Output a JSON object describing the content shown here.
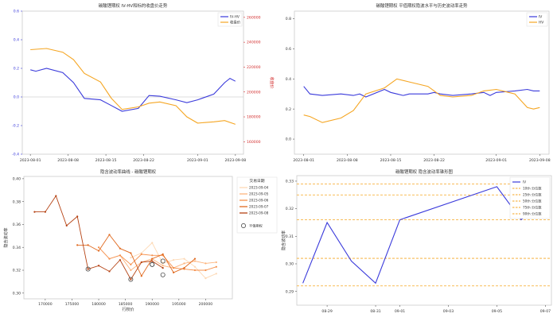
{
  "chart_data": [
    {
      "type": "line",
      "title": "碳酸锂期权 IV-HV和标的收盘价走势",
      "ylabel": "",
      "y2label": "收盘价",
      "ylim": [
        -0.4,
        0.6
      ],
      "yticks": [
        "-0.4",
        "-0.2",
        "0.0",
        "0.2",
        "0.4",
        "0.6"
      ],
      "y2lim": [
        150000,
        265000
      ],
      "y2ticks": [
        "160000",
        "180000",
        "200000",
        "220000",
        "240000",
        "260000"
      ],
      "xlim": [
        "2023-08-01",
        "2023-09-08"
      ],
      "xticks": [
        "2023-08-01",
        "2023-08-08",
        "2023-08-15",
        "2023-08-22",
        "2023-09-01",
        "2023-09-08"
      ],
      "series": [
        {
          "name": "IV-HV",
          "color": "#3a3adb",
          "axis": "left",
          "x": [
            "2023-08-01",
            "2023-08-02",
            "2023-08-04",
            "2023-08-07",
            "2023-08-09",
            "2023-08-11",
            "2023-08-14",
            "2023-08-16",
            "2023-08-18",
            "2023-08-21",
            "2023-08-23",
            "2023-08-25",
            "2023-08-28",
            "2023-08-30",
            "2023-09-01",
            "2023-09-04",
            "2023-09-06",
            "2023-09-07",
            "2023-09-08"
          ],
          "y": [
            0.19,
            0.18,
            0.2,
            0.17,
            0.1,
            -0.01,
            -0.02,
            -0.06,
            -0.1,
            -0.08,
            0.01,
            0.005,
            -0.02,
            -0.04,
            -0.02,
            0.02,
            0.1,
            0.13,
            0.11
          ]
        },
        {
          "name": "收盘价",
          "color": "#f5a623",
          "axis": "right",
          "x": [
            "2023-08-01",
            "2023-08-04",
            "2023-08-07",
            "2023-08-09",
            "2023-08-11",
            "2023-08-14",
            "2023-08-16",
            "2023-08-18",
            "2023-08-21",
            "2023-08-23",
            "2023-08-25",
            "2023-08-28",
            "2023-08-30",
            "2023-09-01",
            "2023-09-04",
            "2023-09-06",
            "2023-09-08"
          ],
          "y": [
            234000,
            235000,
            232000,
            226000,
            215000,
            208000,
            195000,
            186000,
            188000,
            191000,
            192000,
            189000,
            180000,
            175000,
            176000,
            177000,
            174000
          ]
        }
      ],
      "legend": "top-right",
      "grid": false
    },
    {
      "type": "line",
      "title": "碳酸锂期权 平值期权隐波水平与历史波动率走势",
      "ylim": [
        -0.1,
        0.85
      ],
      "yticks": [
        "0.0",
        "0.2",
        "0.4",
        "0.6",
        "0.8"
      ],
      "xlim": [
        "2023-08-01",
        "2023-09-08"
      ],
      "xticks": [
        "2023-08-01",
        "2023-08-08",
        "2023-08-15",
        "2023-08-22",
        "2023-09-01",
        "2023-09-08"
      ],
      "series": [
        {
          "name": "IV",
          "color": "#3a3adb",
          "x": [
            "2023-08-01",
            "2023-08-02",
            "2023-08-04",
            "2023-08-07",
            "2023-08-09",
            "2023-08-10",
            "2023-08-11",
            "2023-08-14",
            "2023-08-15",
            "2023-08-16",
            "2023-08-17",
            "2023-08-18",
            "2023-08-21",
            "2023-08-22",
            "2023-08-23",
            "2023-08-25",
            "2023-08-28",
            "2023-08-30",
            "2023-08-31",
            "2023-09-01",
            "2023-09-04",
            "2023-09-06",
            "2023-09-07",
            "2023-09-08"
          ],
          "y": [
            0.35,
            0.3,
            0.29,
            0.3,
            0.29,
            0.3,
            0.28,
            0.33,
            0.31,
            0.3,
            0.29,
            0.3,
            0.3,
            0.31,
            0.3,
            0.29,
            0.3,
            0.31,
            0.29,
            0.31,
            0.32,
            0.33,
            0.32,
            0.32
          ]
        },
        {
          "name": "HV",
          "color": "#f5a623",
          "x": [
            "2023-08-01",
            "2023-08-02",
            "2023-08-04",
            "2023-08-07",
            "2023-08-09",
            "2023-08-11",
            "2023-08-14",
            "2023-08-16",
            "2023-08-18",
            "2023-08-21",
            "2023-08-23",
            "2023-08-25",
            "2023-08-28",
            "2023-08-30",
            "2023-09-01",
            "2023-09-04",
            "2023-09-06",
            "2023-09-07",
            "2023-09-08"
          ],
          "y": [
            0.16,
            0.15,
            0.11,
            0.14,
            0.19,
            0.3,
            0.34,
            0.4,
            0.38,
            0.35,
            0.29,
            0.28,
            0.29,
            0.32,
            0.33,
            0.3,
            0.21,
            0.2,
            0.21
          ]
        }
      ],
      "legend": "top-right",
      "grid": false
    },
    {
      "type": "line",
      "title": "隐含波动率曲线 - 碳酸锂期权",
      "xlabel": "行权价",
      "ylabel": "隐含波动率",
      "xlim": [
        166000,
        205000
      ],
      "xticks": [
        "170000",
        "175000",
        "180000",
        "185000",
        "190000",
        "195000",
        "200000"
      ],
      "ylim": [
        0.295,
        0.402
      ],
      "yticks": [
        "0.30",
        "0.32",
        "0.34",
        "0.36",
        "0.38",
        "0.40"
      ],
      "legend_title": "交易日期",
      "atm_label": "平值期权",
      "series": [
        {
          "name": "2023-09-04",
          "color": "#fdd9b5",
          "x": [
            186000,
            188000,
            190000,
            192000,
            194000,
            196000,
            198000,
            200000,
            202000
          ],
          "y": [
            0.331,
            0.335,
            0.344,
            0.326,
            0.329,
            0.33,
            0.323,
            0.313,
            0.317
          ],
          "atm": [
            190000,
            0.325
          ]
        },
        {
          "name": "2023-09-05",
          "color": "#fdb57e",
          "x": [
            184000,
            186000,
            188000,
            190000,
            192000,
            194000,
            196000,
            198000,
            200000,
            202000
          ],
          "y": [
            0.333,
            0.32,
            0.327,
            0.33,
            0.324,
            0.322,
            0.326,
            0.328,
            0.326,
            0.327
          ],
          "atm": [
            190000,
            0.325
          ]
        },
        {
          "name": "2023-09-06",
          "color": "#f5904c",
          "x": [
            180000,
            182000,
            184000,
            186000,
            188000,
            190000,
            192000,
            194000,
            196000,
            198000,
            200000,
            202000
          ],
          "y": [
            0.34,
            0.33,
            0.333,
            0.325,
            0.334,
            0.333,
            0.333,
            0.322,
            0.321,
            0.32,
            0.32,
            0.323
          ],
          "atm": [
            192000,
            0.328
          ]
        },
        {
          "name": "2023-09-07",
          "color": "#e06a20",
          "x": [
            176000,
            178000,
            180000,
            182000,
            184000,
            186000,
            188000,
            190000,
            192000,
            194000,
            196000,
            198000
          ],
          "y": [
            0.342,
            0.342,
            0.337,
            0.351,
            0.339,
            0.335,
            0.315,
            0.33,
            0.334,
            0.318,
            0.322,
            0.33
          ],
          "atm": [
            192000,
            0.316
          ]
        },
        {
          "name": "2023-09-08",
          "color": "#b54213",
          "x": [
            168000,
            170000,
            172000,
            174000,
            176000,
            178000,
            180000,
            182000,
            184000,
            186000,
            188000,
            190000,
            192000
          ],
          "y": [
            0.371,
            0.371,
            0.385,
            0.359,
            0.367,
            0.321,
            0.324,
            0.319,
            0.329,
            0.312,
            0.327,
            0.328,
            0.322
          ],
          "atm": [
            186000,
            0.312
          ]
        }
      ],
      "atm_default": [
        178000,
        0.321
      ],
      "grid": false
    },
    {
      "type": "line",
      "title": "碳酸锂期权 隐含波动率锥形图",
      "ylabel": "隐含波动率",
      "ylim": [
        0.285,
        0.332
      ],
      "yticks": [
        "0.29",
        "0.30",
        "0.31",
        "0.32",
        "0.33"
      ],
      "xlim": [
        "2023-08-28",
        "2023-09-07"
      ],
      "xticks": [
        "08-29",
        "08-31",
        "09-01",
        "09-03",
        "09-05",
        "09-07"
      ],
      "series": [
        {
          "name": "IV",
          "color": "#3a3adb",
          "x": [
            "2023-08-28",
            "2023-08-29",
            "2023-08-30",
            "2023-08-31",
            "2023-09-01",
            "2023-09-05",
            "2023-09-06",
            "2023-09-07"
          ],
          "y": [
            0.293,
            0.315,
            0.301,
            0.293,
            0.316,
            0.328,
            0.316,
            0.323
          ]
        }
      ],
      "percentiles": [
        {
          "name": "10th 分位数",
          "value": 0.292
        },
        {
          "name": "25th 分位数",
          "value": 0.302
        },
        {
          "name": "50th 分位数",
          "value": 0.316
        },
        {
          "name": "75th 分位数",
          "value": 0.325
        },
        {
          "name": "90th 分位数",
          "value": 0.329
        }
      ],
      "percentile_color": "#f5a623",
      "legend": "top-right",
      "grid": false
    }
  ]
}
